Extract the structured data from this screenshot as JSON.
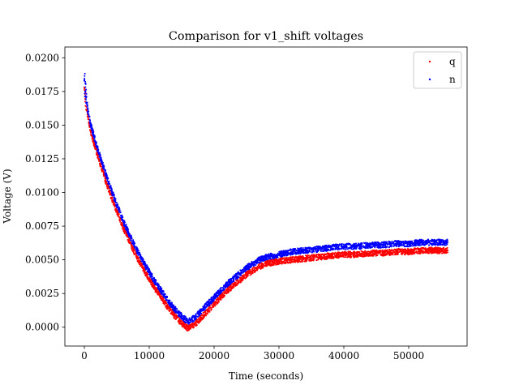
{
  "chart_data": {
    "type": "scatter",
    "title": "Comparison for v1_shift voltages",
    "xlabel": "Time (seconds)",
    "ylabel": "Voltage (V)",
    "xlim": [
      -3000,
      59000
    ],
    "ylim": [
      -0.0014,
      0.0208
    ],
    "xticks": [
      0,
      10000,
      20000,
      30000,
      40000,
      50000
    ],
    "xtick_labels": [
      "0",
      "10000",
      "20000",
      "30000",
      "40000",
      "50000"
    ],
    "yticks": [
      0.0,
      0.0025,
      0.005,
      0.0075,
      0.01,
      0.0125,
      0.015,
      0.0175,
      0.02
    ],
    "ytick_labels": [
      "0.0000",
      "0.0025",
      "0.0050",
      "0.0075",
      "0.0100",
      "0.0125",
      "0.0150",
      "0.0175",
      "0.0200"
    ],
    "grid": false,
    "legend_position": "top-right",
    "series": [
      {
        "name": "q",
        "color": "#ff0000",
        "x": [
          0,
          500,
          1000,
          2000,
          3000,
          4000,
          5000,
          6000,
          7000,
          8000,
          9000,
          10000,
          11000,
          12000,
          13000,
          14000,
          15000,
          16000,
          17000,
          18000,
          19000,
          20000,
          21000,
          22000,
          23000,
          24000,
          25000,
          26000,
          27000,
          28000,
          29000,
          30000,
          32000,
          34000,
          36000,
          38000,
          40000,
          42000,
          44000,
          46000,
          48000,
          50000,
          52000,
          54000,
          56000
        ],
        "y": [
          0.0178,
          0.0158,
          0.0145,
          0.0128,
          0.0113,
          0.0099,
          0.0086,
          0.0074,
          0.0063,
          0.0053,
          0.0044,
          0.0036,
          0.0028,
          0.0021,
          0.0014,
          0.0008,
          0.0003,
          -0.0001,
          0.0002,
          0.0007,
          0.0012,
          0.0017,
          0.0022,
          0.0027,
          0.0031,
          0.0035,
          0.0039,
          0.0042,
          0.0045,
          0.0047,
          0.0048,
          0.0049,
          0.005,
          0.0051,
          0.0052,
          0.0053,
          0.0054,
          0.0054,
          0.0055,
          0.0055,
          0.0056,
          0.0056,
          0.0057,
          0.0057,
          0.0057
        ]
      },
      {
        "name": "n",
        "color": "#0000ff",
        "x": [
          0,
          500,
          1000,
          2000,
          3000,
          4000,
          5000,
          6000,
          7000,
          8000,
          9000,
          10000,
          11000,
          12000,
          13000,
          14000,
          15000,
          16000,
          17000,
          18000,
          19000,
          20000,
          21000,
          22000,
          23000,
          24000,
          25000,
          26000,
          27000,
          28000,
          29000,
          30000,
          32000,
          34000,
          36000,
          38000,
          40000,
          42000,
          44000,
          46000,
          48000,
          50000,
          52000,
          54000,
          56000
        ],
        "y": [
          0.0183,
          0.0162,
          0.015,
          0.0133,
          0.0118,
          0.0104,
          0.0091,
          0.0079,
          0.0068,
          0.0058,
          0.0049,
          0.0041,
          0.0033,
          0.0026,
          0.0019,
          0.0013,
          0.0008,
          0.0004,
          0.0007,
          0.0012,
          0.0017,
          0.0022,
          0.0027,
          0.0032,
          0.0036,
          0.004,
          0.0044,
          0.0047,
          0.005,
          0.0052,
          0.0053,
          0.0054,
          0.0056,
          0.0057,
          0.0058,
          0.0059,
          0.006,
          0.006,
          0.0061,
          0.0061,
          0.0062,
          0.0062,
          0.0063,
          0.0063,
          0.0063
        ]
      }
    ]
  }
}
